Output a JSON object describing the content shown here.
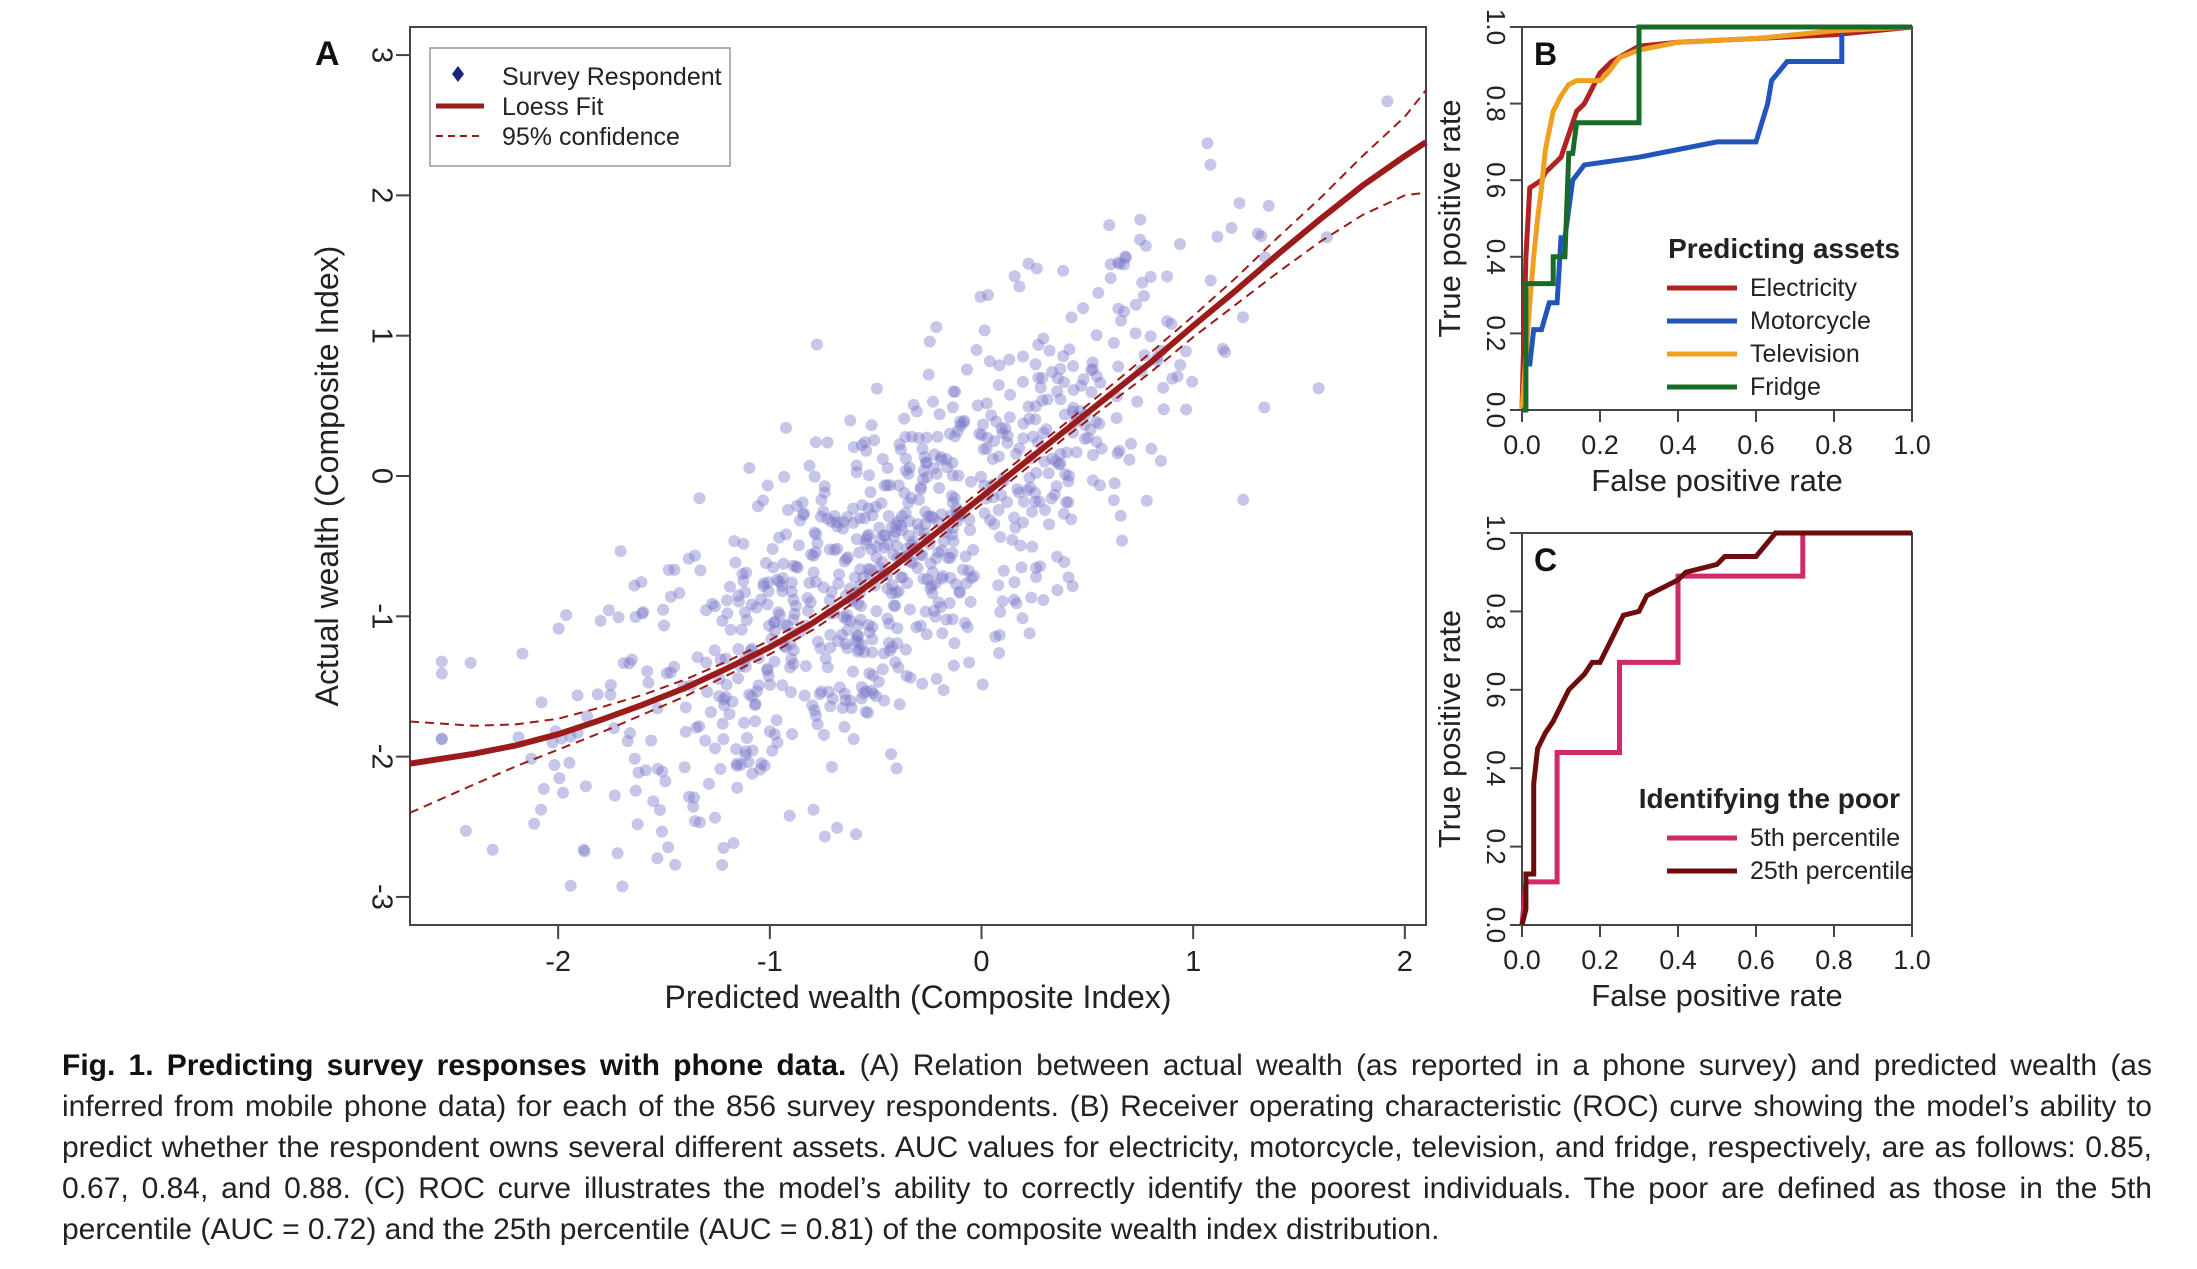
{
  "chart_data": [
    {
      "panel": "A",
      "type": "scatter",
      "xlabel": "Predicted wealth (Composite Index)",
      "ylabel": "Actual wealth (Composite Index)",
      "xlim": [
        -2.7,
        2.1
      ],
      "ylim": [
        -3.2,
        3.2
      ],
      "xticks": [
        "-2",
        "-1",
        "0",
        "1",
        "2"
      ],
      "yticks": [
        "-3",
        "-2",
        "-1",
        "0",
        "1",
        "2",
        "3"
      ],
      "legend": [
        "Survey Respondent",
        "Loess Fit",
        "95% confidence"
      ],
      "legend_position": "top-left",
      "colors": {
        "points": "#7878c8",
        "legend_point": "#1a237e",
        "fit": "#9b1b1b"
      },
      "point_spread_sd": 0.6,
      "n_points_shown": 856,
      "series": [
        {
          "name": "Loess Fit",
          "x": [
            -2.7,
            -2.4,
            -2.2,
            -2.0,
            -1.8,
            -1.6,
            -1.4,
            -1.2,
            -1.0,
            -0.8,
            -0.6,
            -0.4,
            -0.2,
            0.0,
            0.2,
            0.4,
            0.6,
            0.8,
            1.0,
            1.2,
            1.4,
            1.6,
            1.8,
            2.0,
            2.1
          ],
          "y": [
            -2.05,
            -1.98,
            -1.92,
            -1.84,
            -1.74,
            -1.63,
            -1.51,
            -1.37,
            -1.22,
            -1.05,
            -0.85,
            -0.63,
            -0.39,
            -0.15,
            0.09,
            0.33,
            0.57,
            0.81,
            1.07,
            1.32,
            1.58,
            1.83,
            2.07,
            2.28,
            2.38
          ]
        },
        {
          "name": "95% confidence",
          "x": [
            -2.7,
            -2.4,
            -2.2,
            -2.0,
            -1.8,
            -1.6,
            -1.4,
            -1.2,
            -1.0,
            -0.8,
            -0.6,
            -0.4,
            -0.2,
            0.0,
            0.2,
            0.4,
            0.6,
            0.8,
            1.0,
            1.2,
            1.4,
            1.6,
            1.8,
            2.0,
            2.1
          ],
          "y": [
            -1.75,
            -1.78,
            -1.77,
            -1.73,
            -1.65,
            -1.56,
            -1.45,
            -1.32,
            -1.17,
            -1.0,
            -0.8,
            -0.58,
            -0.34,
            -0.1,
            0.14,
            0.38,
            0.63,
            0.88,
            1.14,
            1.41,
            1.7,
            1.98,
            2.28,
            2.56,
            2.75
          ]
        },
        {
          "name": "95% confidence",
          "x": [
            -2.7,
            -2.4,
            -2.2,
            -2.0,
            -1.8,
            -1.6,
            -1.4,
            -1.2,
            -1.0,
            -0.8,
            -0.6,
            -0.4,
            -0.2,
            0.0,
            0.2,
            0.4,
            0.6,
            0.8,
            1.0,
            1.2,
            1.4,
            1.6,
            1.8,
            2.0,
            2.1
          ],
          "y": [
            -2.4,
            -2.2,
            -2.07,
            -1.95,
            -1.83,
            -1.7,
            -1.57,
            -1.42,
            -1.27,
            -1.1,
            -0.9,
            -0.68,
            -0.44,
            -0.2,
            0.04,
            0.28,
            0.51,
            0.74,
            0.99,
            1.22,
            1.45,
            1.67,
            1.86,
            2.0,
            2.02
          ]
        }
      ]
    },
    {
      "panel": "B",
      "type": "line",
      "xlabel": "False positive rate",
      "ylabel": "True positive rate",
      "xlim": [
        0,
        1
      ],
      "ylim": [
        0,
        1
      ],
      "xticks": [
        "0.0",
        "0.2",
        "0.4",
        "0.6",
        "0.8",
        "1.0"
      ],
      "yticks": [
        "0.0",
        "0.2",
        "0.4",
        "0.6",
        "0.8",
        "1.0"
      ],
      "legend_title": "Predicting assets",
      "legend_position": "bottom-right",
      "series": [
        {
          "name": "Electricity",
          "color": "#b22222",
          "x": [
            0,
            0.01,
            0.02,
            0.05,
            0.06,
            0.1,
            0.14,
            0.16,
            0.2,
            0.23,
            0.3,
            0.4,
            0.6,
            0.8,
            1.0
          ],
          "y": [
            0,
            0.4,
            0.58,
            0.6,
            0.62,
            0.66,
            0.78,
            0.8,
            0.88,
            0.91,
            0.95,
            0.96,
            0.97,
            0.98,
            1.0
          ]
        },
        {
          "name": "Motorcycle",
          "color": "#2255bb",
          "x": [
            0,
            0.01,
            0.02,
            0.03,
            0.05,
            0.07,
            0.09,
            0.1,
            0.11,
            0.13,
            0.16,
            0.3,
            0.5,
            0.6,
            0.63,
            0.64,
            0.68,
            0.82,
            0.82,
            1.0
          ],
          "y": [
            0,
            0.12,
            0.12,
            0.21,
            0.21,
            0.28,
            0.28,
            0.45,
            0.45,
            0.6,
            0.64,
            0.66,
            0.7,
            0.7,
            0.8,
            0.86,
            0.91,
            0.91,
            1.0,
            1.0
          ]
        },
        {
          "name": "Television",
          "color": "#f0a020",
          "x": [
            0,
            0.02,
            0.03,
            0.04,
            0.05,
            0.06,
            0.08,
            0.1,
            0.12,
            0.14,
            0.2,
            0.22,
            0.25,
            0.3,
            0.4,
            0.6,
            0.8,
            1.0
          ],
          "y": [
            0,
            0.28,
            0.4,
            0.5,
            0.58,
            0.68,
            0.78,
            0.82,
            0.85,
            0.86,
            0.86,
            0.88,
            0.92,
            0.94,
            0.96,
            0.97,
            0.99,
            1.0
          ]
        },
        {
          "name": "Fridge",
          "color": "#1a6b2a",
          "x": [
            0,
            0.01,
            0.01,
            0.08,
            0.08,
            0.11,
            0.12,
            0.13,
            0.14,
            0.2,
            0.24,
            0.3,
            0.3,
            1.0
          ],
          "y": [
            0,
            0.0,
            0.33,
            0.33,
            0.4,
            0.4,
            0.67,
            0.67,
            0.75,
            0.75,
            0.75,
            0.75,
            1.0,
            1.0
          ]
        }
      ]
    },
    {
      "panel": "C",
      "type": "line",
      "xlabel": "False positive rate",
      "ylabel": "True positive rate",
      "xlim": [
        0,
        1
      ],
      "ylim": [
        0,
        1
      ],
      "xticks": [
        "0.0",
        "0.2",
        "0.4",
        "0.6",
        "0.8",
        "1.0"
      ],
      "yticks": [
        "0.0",
        "0.2",
        "0.4",
        "0.6",
        "0.8",
        "1.0"
      ],
      "legend_title": "Identifying the poor",
      "legend_position": "bottom-right",
      "series": [
        {
          "name": "5th percentile",
          "color": "#d02a6a",
          "x": [
            0,
            0.01,
            0.09,
            0.09,
            0.25,
            0.25,
            0.4,
            0.4,
            0.72,
            0.72,
            1.0
          ],
          "y": [
            0,
            0.11,
            0.11,
            0.44,
            0.44,
            0.67,
            0.67,
            0.89,
            0.89,
            1.0,
            1.0
          ]
        },
        {
          "name": "25th percentile",
          "color": "#6e0c0c",
          "x": [
            0,
            0.01,
            0.01,
            0.03,
            0.03,
            0.04,
            0.06,
            0.08,
            0.1,
            0.12,
            0.16,
            0.18,
            0.2,
            0.26,
            0.3,
            0.32,
            0.4,
            0.42,
            0.5,
            0.52,
            0.6,
            0.65,
            1.0
          ],
          "y": [
            0,
            0.04,
            0.13,
            0.13,
            0.36,
            0.45,
            0.49,
            0.52,
            0.56,
            0.6,
            0.64,
            0.67,
            0.67,
            0.79,
            0.8,
            0.84,
            0.88,
            0.9,
            0.92,
            0.94,
            0.94,
            1.0,
            1.0
          ]
        }
      ]
    }
  ],
  "panel_letters": [
    "A",
    "B",
    "C"
  ],
  "caption": {
    "label": "Fig. 1. Predicting survey responses with phone data.",
    "text": " (A) Relation between actual wealth (as reported in a phone survey) and predicted wealth (as inferred from mobile phone data) for each of the 856 survey respondents. (B) Receiver operating characteristic (ROC) curve showing the model’s ability to predict whether the respondent owns several different assets. AUC values for electricity, motorcycle, television, and fridge, respectively, are as follows: 0.85, 0.67, 0.84, and 0.88. (C) ROC curve illustrates the model’s ability to correctly identify the poorest individuals. The poor are defined as those in the 5th percentile (AUC = 0.72) and the 25th percentile (AUC = 0.81) of the composite wealth index distribution."
  }
}
